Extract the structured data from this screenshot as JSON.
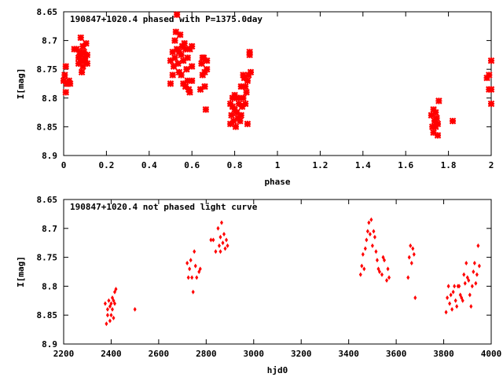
{
  "chart_data": [
    {
      "type": "scatter",
      "title": "190847+1020.4 phased with P=1375.0day",
      "xlabel": "phase",
      "ylabel": "I[mag]",
      "xlim": [
        0,
        2
      ],
      "ylim": [
        8.9,
        8.65
      ],
      "y_inverted": true,
      "xticks": [
        "0",
        "0.2",
        "0.4",
        "0.6",
        "0.8",
        "1",
        "1.2",
        "1.4",
        "1.6",
        "1.8",
        "2"
      ],
      "yticks": [
        "8.65",
        "8.7",
        "8.75",
        "8.8",
        "8.85",
        "8.9"
      ],
      "grid": false,
      "marker_color": "#ff0000",
      "series": [
        {
          "x": [
            0.0,
            0.005,
            0.01,
            0.01,
            0.015,
            0.02,
            0.025,
            0.03,
            0.05,
            0.06,
            0.07,
            0.07,
            0.075,
            0.08,
            0.08,
            0.085,
            0.085,
            0.09,
            0.09,
            0.095,
            0.1,
            0.1,
            0.105,
            0.11,
            0.11,
            0.5,
            0.5,
            0.51,
            0.51,
            0.515,
            0.52,
            0.52,
            0.525,
            0.53,
            0.53,
            0.535,
            0.54,
            0.54,
            0.545,
            0.55,
            0.55,
            0.555,
            0.56,
            0.56,
            0.565,
            0.57,
            0.57,
            0.575,
            0.58,
            0.58,
            0.585,
            0.59,
            0.59,
            0.6,
            0.6,
            0.6,
            0.64,
            0.645,
            0.65,
            0.65,
            0.655,
            0.66,
            0.66,
            0.665,
            0.67,
            0.67,
            0.78,
            0.78,
            0.785,
            0.79,
            0.79,
            0.795,
            0.8,
            0.8,
            0.805,
            0.81,
            0.81,
            0.815,
            0.82,
            0.82,
            0.825,
            0.83,
            0.83,
            0.835,
            0.84,
            0.84,
            0.845,
            0.85,
            0.85,
            0.855,
            0.86,
            0.86,
            0.865,
            0.87,
            0.87,
            0.875,
            1.72,
            1.725,
            1.73,
            1.73,
            1.735,
            1.74,
            1.74,
            1.745,
            1.75,
            1.75,
            1.755,
            1.82,
            1.98,
            1.99,
            1.99,
            2.0,
            2.0,
            2.0
          ],
          "y": [
            8.77,
            8.76,
            8.79,
            8.745,
            8.775,
            8.775,
            8.77,
            8.775,
            8.715,
            8.715,
            8.73,
            8.74,
            8.72,
            8.695,
            8.725,
            8.735,
            8.755,
            8.71,
            8.745,
            8.72,
            8.735,
            8.73,
            8.705,
            8.74,
            8.725,
            8.775,
            8.735,
            8.72,
            8.76,
            8.745,
            8.7,
            8.73,
            8.685,
            8.655,
            8.715,
            8.74,
            8.72,
            8.755,
            8.69,
            8.725,
            8.76,
            8.71,
            8.735,
            8.775,
            8.705,
            8.715,
            8.78,
            8.75,
            8.73,
            8.77,
            8.785,
            8.715,
            8.79,
            8.77,
            8.745,
            8.71,
            8.785,
            8.74,
            8.73,
            8.76,
            8.73,
            8.78,
            8.755,
            8.82,
            8.75,
            8.735,
            8.81,
            8.845,
            8.83,
            8.8,
            8.815,
            8.84,
            8.795,
            8.82,
            8.85,
            8.8,
            8.825,
            8.835,
            8.81,
            8.8,
            8.84,
            8.83,
            8.78,
            8.815,
            8.8,
            8.76,
            8.765,
            8.81,
            8.78,
            8.79,
            8.77,
            8.845,
            8.76,
            8.725,
            8.72,
            8.755,
            8.83,
            8.85,
            8.82,
            8.86,
            8.84,
            8.85,
            8.825,
            8.835,
            8.865,
            8.845,
            8.805,
            8.84,
            8.765,
            8.76,
            8.785,
            8.735,
            8.81,
            8.785
          ],
          "marker": "star"
        }
      ]
    },
    {
      "type": "scatter",
      "title": "190847+1020.4 not phased light curve",
      "xlabel": "hjd0",
      "ylabel": "I[mag]",
      "xlim": [
        2200,
        4000
      ],
      "ylim": [
        8.9,
        8.65
      ],
      "y_inverted": true,
      "xticks": [
        "2200",
        "2400",
        "2600",
        "2800",
        "3000",
        "3200",
        "3400",
        "3600",
        "3800",
        "4000"
      ],
      "yticks": [
        "8.65",
        "8.7",
        "8.75",
        "8.8",
        "8.85",
        "8.9"
      ],
      "grid": false,
      "marker_color": "#ff0000",
      "series": [
        {
          "x": [
            2375,
            2380,
            2385,
            2385,
            2390,
            2395,
            2395,
            2400,
            2400,
            2405,
            2405,
            2410,
            2410,
            2415,
            2415,
            2420,
            2500,
            2720,
            2725,
            2730,
            2735,
            2740,
            2745,
            2750,
            2755,
            2760,
            2770,
            2775,
            2820,
            2830,
            2840,
            2850,
            2855,
            2860,
            2860,
            2865,
            2870,
            2875,
            2880,
            2885,
            2890,
            3450,
            3455,
            3460,
            3465,
            3470,
            3475,
            3480,
            3485,
            3490,
            3495,
            3500,
            3505,
            3510,
            3515,
            3520,
            3525,
            3530,
            3540,
            3545,
            3550,
            3560,
            3565,
            3570,
            3650,
            3655,
            3660,
            3665,
            3670,
            3675,
            3680,
            3810,
            3815,
            3820,
            3825,
            3830,
            3835,
            3840,
            3845,
            3850,
            3855,
            3860,
            3865,
            3870,
            3875,
            3880,
            3885,
            3890,
            3895,
            3900,
            3905,
            3910,
            3915,
            3920,
            3925,
            3930,
            3935,
            3940,
            3945,
            3950
          ],
          "y": [
            8.83,
            8.865,
            8.85,
            8.84,
            8.825,
            8.86,
            8.835,
            8.85,
            8.83,
            8.84,
            8.82,
            8.855,
            8.825,
            8.81,
            8.83,
            8.805,
            8.84,
            8.76,
            8.785,
            8.77,
            8.755,
            8.785,
            8.81,
            8.74,
            8.765,
            8.785,
            8.775,
            8.77,
            8.72,
            8.72,
            8.74,
            8.7,
            8.73,
            8.715,
            8.74,
            8.69,
            8.725,
            8.71,
            8.735,
            8.72,
            8.73,
            8.78,
            8.765,
            8.745,
            8.77,
            8.735,
            8.72,
            8.705,
            8.69,
            8.71,
            8.685,
            8.73,
            8.705,
            8.715,
            8.74,
            8.755,
            8.77,
            8.775,
            8.78,
            8.75,
            8.755,
            8.79,
            8.77,
            8.785,
            8.785,
            8.75,
            8.73,
            8.76,
            8.735,
            8.745,
            8.82,
            8.845,
            8.82,
            8.8,
            8.83,
            8.815,
            8.84,
            8.81,
            8.8,
            8.825,
            8.835,
            8.8,
            8.8,
            8.815,
            8.82,
            8.825,
            8.78,
            8.795,
            8.76,
            8.785,
            8.79,
            8.815,
            8.835,
            8.8,
            8.775,
            8.76,
            8.795,
            8.78,
            8.73,
            8.765
          ],
          "marker": "diamond"
        }
      ]
    }
  ]
}
